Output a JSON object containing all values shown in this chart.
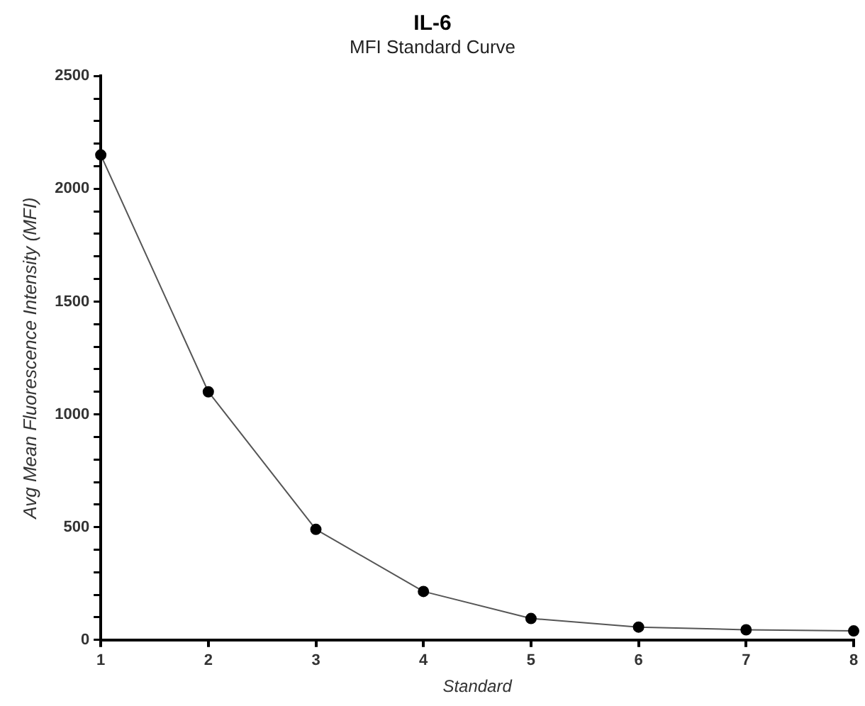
{
  "chart_data": {
    "type": "line",
    "title": "IL-6",
    "subtitle": "MFI Standard Curve",
    "xlabel": "Standard",
    "ylabel": "Avg Mean Fluorescence Intensity (MFI)",
    "x": [
      1,
      2,
      3,
      4,
      5,
      6,
      7,
      8
    ],
    "series": [
      {
        "color": "#555555",
        "values": [
          2150,
          1100,
          490,
          215,
          95,
          57,
          45,
          40
        ]
      }
    ],
    "xlim": [
      1,
      8
    ],
    "xticks": [
      1,
      2,
      3,
      4,
      5,
      6,
      7,
      8
    ],
    "ylim": [
      0,
      2500
    ],
    "yticks": [
      0,
      {
        "value": 100,
        "label": null
      },
      {
        "value": 200,
        "label": null
      },
      {
        "value": 300,
        "label": null
      },
      {
        "value": 400,
        "label": null
      },
      500,
      {
        "value": 600,
        "label": null
      },
      {
        "value": 700,
        "label": null
      },
      {
        "value": 800,
        "label": null
      },
      {
        "value": 900,
        "label": null
      },
      1000,
      {
        "value": 1100,
        "label": null
      },
      {
        "value": 1200,
        "label": null
      },
      {
        "value": 1300,
        "label": null
      },
      {
        "value": 1400,
        "label": null
      },
      1500,
      {
        "value": 1600,
        "label": null
      },
      {
        "value": 1700,
        "label": null
      },
      {
        "value": 1800,
        "label": null
      },
      {
        "value": 1900,
        "label": null
      },
      2000,
      {
        "value": 2100,
        "label": null
      },
      {
        "value": 2200,
        "label": null
      },
      {
        "value": 2300,
        "label": null
      },
      {
        "value": 2400,
        "label": null
      },
      2500
    ],
    "grid": false,
    "legend": false,
    "marker": "circle",
    "line_style": "solid"
  }
}
